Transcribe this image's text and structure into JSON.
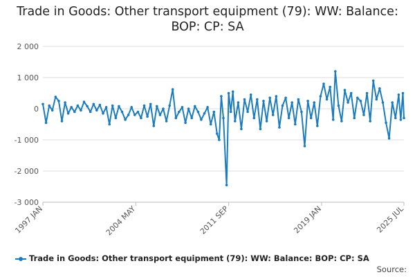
{
  "chart_data": {
    "type": "line",
    "title": "Trade in Goods: Other transport equipment (79): WW: Balance: BOP: CP: SA",
    "xlabel": "",
    "ylabel": "",
    "ylim": [
      -3000,
      2000
    ],
    "yticks": [
      -3000,
      -2000,
      -1000,
      0,
      1000,
      2000
    ],
    "ytick_labels": [
      "-3 000",
      "-2 000",
      "-1 000",
      "0",
      "1 000",
      "2 000"
    ],
    "xticks": [
      {
        "label": "1997 JAN",
        "date": "1997-01"
      },
      {
        "label": "2004 MAY",
        "date": "2004-05"
      },
      {
        "label": "2011 SEP",
        "date": "2011-09"
      },
      {
        "label": "2019 JAN",
        "date": "2019-01"
      },
      {
        "label": "2025 JUL",
        "date": "2025-07"
      }
    ],
    "x_range": [
      "1997-01",
      "2025-07"
    ],
    "grid": true,
    "legend": "bottom",
    "color": "#1b7bbf",
    "series": [
      {
        "name": "Trade in Goods: Other transport equipment (79): WW: Balance: BOP: CP: SA",
        "points": [
          [
            "1997-01",
            150
          ],
          [
            "1997-04",
            -450
          ],
          [
            "1997-07",
            100
          ],
          [
            "1997-10",
            -50
          ],
          [
            "1998-01",
            380
          ],
          [
            "1998-04",
            250
          ],
          [
            "1998-07",
            -400
          ],
          [
            "1998-10",
            200
          ],
          [
            "1999-01",
            -150
          ],
          [
            "1999-04",
            50
          ],
          [
            "1999-07",
            -100
          ],
          [
            "1999-10",
            100
          ],
          [
            "2000-01",
            -50
          ],
          [
            "2000-04",
            220
          ],
          [
            "2000-07",
            80
          ],
          [
            "2000-10",
            -100
          ],
          [
            "2001-01",
            150
          ],
          [
            "2001-04",
            -50
          ],
          [
            "2001-07",
            120
          ],
          [
            "2001-10",
            -150
          ],
          [
            "2002-01",
            50
          ],
          [
            "2002-04",
            -500
          ],
          [
            "2002-07",
            100
          ],
          [
            "2002-10",
            -300
          ],
          [
            "2003-01",
            80
          ],
          [
            "2003-04",
            -100
          ],
          [
            "2003-07",
            -350
          ],
          [
            "2003-10",
            -200
          ],
          [
            "2004-01",
            50
          ],
          [
            "2004-04",
            -200
          ],
          [
            "2004-07",
            -100
          ],
          [
            "2004-10",
            -300
          ],
          [
            "2005-01",
            100
          ],
          [
            "2005-04",
            -250
          ],
          [
            "2005-07",
            150
          ],
          [
            "2005-10",
            -550
          ],
          [
            "2006-01",
            80
          ],
          [
            "2006-04",
            -200
          ],
          [
            "2006-07",
            0
          ],
          [
            "2006-10",
            -400
          ],
          [
            "2007-01",
            100
          ],
          [
            "2007-04",
            620
          ],
          [
            "2007-07",
            -300
          ],
          [
            "2007-10",
            -100
          ],
          [
            "2008-01",
            50
          ],
          [
            "2008-04",
            -450
          ],
          [
            "2008-07",
            0
          ],
          [
            "2008-10",
            -300
          ],
          [
            "2009-01",
            80
          ],
          [
            "2009-04",
            -100
          ],
          [
            "2009-07",
            -350
          ],
          [
            "2009-10",
            -150
          ],
          [
            "2010-01",
            50
          ],
          [
            "2010-04",
            -500
          ],
          [
            "2010-07",
            -100
          ],
          [
            "2010-10",
            -800
          ],
          [
            "2010-12",
            -1000
          ],
          [
            "2011-02",
            400
          ],
          [
            "2011-04",
            -300
          ],
          [
            "2011-07",
            -2450
          ],
          [
            "2011-09",
            500
          ],
          [
            "2011-11",
            -100
          ],
          [
            "2012-01",
            550
          ],
          [
            "2012-03",
            -400
          ],
          [
            "2012-06",
            200
          ],
          [
            "2012-09",
            -650
          ],
          [
            "2012-12",
            300
          ],
          [
            "2013-03",
            -100
          ],
          [
            "2013-06",
            450
          ],
          [
            "2013-09",
            -300
          ],
          [
            "2013-12",
            300
          ],
          [
            "2014-03",
            -650
          ],
          [
            "2014-06",
            250
          ],
          [
            "2014-09",
            -400
          ],
          [
            "2014-12",
            350
          ],
          [
            "2015-03",
            -200
          ],
          [
            "2015-06",
            400
          ],
          [
            "2015-09",
            -600
          ],
          [
            "2015-12",
            100
          ],
          [
            "2016-03",
            350
          ],
          [
            "2016-06",
            -300
          ],
          [
            "2016-09",
            200
          ],
          [
            "2016-12",
            -500
          ],
          [
            "2017-03",
            300
          ],
          [
            "2017-06",
            -100
          ],
          [
            "2017-09",
            -1200
          ],
          [
            "2017-12",
            250
          ],
          [
            "2018-03",
            -300
          ],
          [
            "2018-06",
            200
          ],
          [
            "2018-09",
            -550
          ],
          [
            "2018-12",
            400
          ],
          [
            "2019-03",
            800
          ],
          [
            "2019-06",
            300
          ],
          [
            "2019-09",
            700
          ],
          [
            "2019-12",
            -350
          ],
          [
            "2020-02",
            1200
          ],
          [
            "2020-05",
            100
          ],
          [
            "2020-08",
            -400
          ],
          [
            "2020-11",
            600
          ],
          [
            "2021-02",
            200
          ],
          [
            "2021-05",
            500
          ],
          [
            "2021-08",
            -300
          ],
          [
            "2021-11",
            350
          ],
          [
            "2022-02",
            250
          ],
          [
            "2022-05",
            -200
          ],
          [
            "2022-08",
            500
          ],
          [
            "2022-11",
            -400
          ],
          [
            "2023-02",
            900
          ],
          [
            "2023-05",
            300
          ],
          [
            "2023-08",
            650
          ],
          [
            "2023-11",
            200
          ],
          [
            "2024-02",
            -450
          ],
          [
            "2024-05",
            -950
          ],
          [
            "2024-08",
            200
          ],
          [
            "2024-11",
            -300
          ],
          [
            "2025-02",
            450
          ],
          [
            "2025-04",
            -350
          ],
          [
            "2025-06",
            500
          ],
          [
            "2025-07",
            -300
          ]
        ]
      }
    ]
  },
  "legend_label": "Trade in Goods: Other transport equipment (79): WW: Balance: BOP: CP: SA",
  "source_label": "Source:"
}
